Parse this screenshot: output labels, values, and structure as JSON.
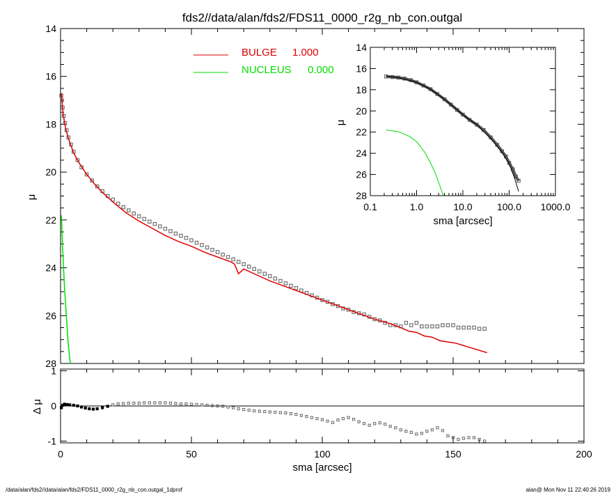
{
  "title": "fds2//data/alan/fds2/FDS11_0000_r2g_nb_con.outgal",
  "footer_left": "/data/alan/fds2//data/alan/fds2/FDS11_0000_r2g_nb_con.outgal_1dprof",
  "footer_right": "alan@  Mon Nov 11 22:40:26 2019",
  "chart_data": [
    {
      "panel": "main",
      "type": "scatter",
      "xlabel": "",
      "ylabel": "μ",
      "xlim": [
        0,
        200
      ],
      "ylim": [
        28,
        14
      ],
      "y_inverted": true,
      "xticks": [
        0,
        50,
        100,
        150,
        200
      ],
      "yticks": [
        14,
        16,
        18,
        20,
        22,
        24,
        26,
        28
      ],
      "legend_position": "top-center",
      "colors": {
        "data": "#666666",
        "bulge": "#dd0000",
        "nucleus": "#00dd00"
      },
      "legend": [
        {
          "name": "BULGE",
          "value": "1.000",
          "color": "#dd0000"
        },
        {
          "name": "NUCLEUS",
          "value": "0.000",
          "color": "#00dd00"
        }
      ],
      "series": [
        {
          "name": "data",
          "kind": "markers",
          "x": [
            0.3,
            0.5,
            0.8,
            1.2,
            1.7,
            2.3,
            3,
            4,
            5,
            6.5,
            8,
            10,
            12,
            14,
            16,
            18,
            20,
            22,
            24,
            26,
            28,
            30,
            32,
            34,
            36,
            38,
            40,
            42,
            44,
            46,
            48,
            50,
            52,
            54,
            56,
            58,
            60,
            62,
            64,
            66,
            68,
            70,
            72,
            74,
            76,
            78,
            80,
            82,
            84,
            86,
            88,
            90,
            92,
            94,
            96,
            98,
            100,
            102,
            104,
            106,
            108,
            110,
            112,
            114,
            116,
            118,
            120,
            122,
            124,
            126,
            128,
            130,
            132,
            134,
            136,
            138,
            140,
            142,
            144,
            146,
            148,
            150,
            152,
            154,
            156,
            158,
            160,
            162
          ],
          "y": [
            16.8,
            17.0,
            17.3,
            17.65,
            17.95,
            18.25,
            18.55,
            18.85,
            19.15,
            19.5,
            19.8,
            20.1,
            20.35,
            20.6,
            20.8,
            21.0,
            21.15,
            21.32,
            21.47,
            21.6,
            21.73,
            21.85,
            21.96,
            22.07,
            22.17,
            22.27,
            22.37,
            22.47,
            22.57,
            22.66,
            22.75,
            22.85,
            22.95,
            23.05,
            23.15,
            23.25,
            23.34,
            23.45,
            23.55,
            23.65,
            23.75,
            23.85,
            23.95,
            24.05,
            24.15,
            24.25,
            24.35,
            24.45,
            24.55,
            24.65,
            24.75,
            24.85,
            24.95,
            25.05,
            25.15,
            25.25,
            25.35,
            25.42,
            25.52,
            25.6,
            25.7,
            25.75,
            25.85,
            25.9,
            25.95,
            26.05,
            26.15,
            26.2,
            26.3,
            26.4,
            26.4,
            26.45,
            26.3,
            26.4,
            26.3,
            26.45,
            26.45,
            26.45,
            26.45,
            26.4,
            26.4,
            26.4,
            26.5,
            26.5,
            26.5,
            26.5,
            26.55,
            26.55
          ]
        },
        {
          "name": "bulge",
          "kind": "line",
          "x": [
            0.3,
            1,
            2,
            3,
            5,
            7,
            10,
            13,
            16,
            20,
            25,
            30,
            35,
            40,
            45,
            50,
            55,
            60,
            65,
            66.5,
            68,
            70,
            75,
            80,
            85,
            90,
            95,
            100,
            105,
            110,
            115,
            120,
            125,
            130,
            133,
            136,
            139,
            142,
            145,
            148,
            151,
            154,
            157,
            160,
            163
          ],
          "y": [
            16.7,
            17.6,
            18.2,
            18.6,
            19.2,
            19.6,
            20.1,
            20.5,
            20.85,
            21.25,
            21.7,
            22.05,
            22.35,
            22.65,
            22.9,
            23.1,
            23.35,
            23.55,
            23.75,
            23.85,
            24.25,
            24.05,
            24.3,
            24.55,
            24.75,
            24.95,
            25.15,
            25.35,
            25.55,
            25.75,
            25.95,
            26.15,
            26.3,
            26.5,
            26.65,
            26.7,
            26.85,
            26.9,
            27.05,
            27.1,
            27.15,
            27.25,
            27.35,
            27.45,
            27.55
          ]
        },
        {
          "name": "nucleus",
          "kind": "line",
          "x": [
            0.3,
            0.8,
            1.5,
            2.2,
            2.8,
            3.4,
            3.8
          ],
          "y": [
            21.8,
            23.2,
            24.8,
            26.0,
            27.0,
            27.7,
            28.0
          ]
        }
      ]
    },
    {
      "panel": "residual",
      "type": "scatter",
      "xlabel": "sma [arcsec]",
      "ylabel": "Δ μ",
      "xlim": [
        0,
        200
      ],
      "ylim": [
        -1.05,
        1.05
      ],
      "xticks": [
        0,
        50,
        100,
        150,
        200
      ],
      "yticks": [
        1,
        0,
        -1
      ],
      "zero_line": true,
      "series": [
        {
          "name": "residual",
          "kind": "markers",
          "x": [
            0.3,
            0.8,
            1.5,
            2.5,
            3.5,
            5,
            6.5,
            8,
            9.5,
            11,
            12.5,
            14,
            16,
            18,
            20,
            22,
            24,
            26,
            28,
            30,
            32,
            34,
            36,
            38,
            40,
            42,
            44,
            46,
            48,
            50,
            52,
            54,
            56,
            58,
            60,
            62,
            64,
            66,
            68,
            70,
            72,
            74,
            76,
            78,
            80,
            82,
            84,
            86,
            88,
            90,
            92,
            94,
            96,
            98,
            100,
            102,
            104,
            106,
            108,
            110,
            112,
            114,
            116,
            118,
            120,
            122,
            124,
            126,
            128,
            130,
            132,
            134,
            136,
            138,
            140,
            142,
            144,
            146,
            148,
            150,
            152,
            154,
            156,
            158,
            160,
            162
          ],
          "y": [
            -0.05,
            0.02,
            0.05,
            0.04,
            0.03,
            0.02,
            0.0,
            -0.03,
            -0.06,
            -0.08,
            -0.09,
            -0.08,
            -0.05,
            -0.01,
            0.03,
            0.06,
            0.07,
            0.08,
            0.08,
            0.08,
            0.09,
            0.09,
            0.09,
            0.09,
            0.09,
            0.08,
            0.07,
            0.06,
            0.06,
            0.05,
            0.04,
            0.03,
            0.02,
            0.01,
            0.0,
            -0.01,
            -0.03,
            -0.05,
            -0.08,
            -0.1,
            -0.12,
            -0.14,
            -0.15,
            -0.16,
            -0.17,
            -0.18,
            -0.19,
            -0.2,
            -0.22,
            -0.24,
            -0.27,
            -0.3,
            -0.33,
            -0.36,
            -0.39,
            -0.43,
            -0.47,
            -0.4,
            -0.36,
            -0.33,
            -0.38,
            -0.45,
            -0.5,
            -0.55,
            -0.5,
            -0.48,
            -0.52,
            -0.58,
            -0.62,
            -0.68,
            -0.72,
            -0.75,
            -0.8,
            -0.78,
            -0.72,
            -0.68,
            -0.62,
            -0.7,
            -0.85,
            -0.9,
            -0.95,
            -0.92,
            -0.9,
            -0.9,
            -0.95,
            -1.0
          ]
        }
      ]
    },
    {
      "panel": "inset",
      "type": "scatter",
      "xlabel": "sma [arcsec]",
      "ylabel": "μ",
      "x_scale": "log",
      "xlim": [
        0.1,
        1000
      ],
      "ylim": [
        28,
        14
      ],
      "y_inverted": true,
      "xticks": [
        0.1,
        1.0,
        10.0,
        100.0,
        1000.0
      ],
      "xtick_labels": [
        "0.1",
        "1.0",
        "10.0",
        "100.0",
        "1000.0"
      ],
      "yticks": [
        14,
        16,
        18,
        20,
        22,
        24,
        26,
        28
      ],
      "series": [
        {
          "name": "data",
          "kind": "markers",
          "x": [
            0.22,
            0.3,
            0.4,
            0.55,
            0.75,
            1.0,
            1.4,
            2.0,
            2.8,
            4.0,
            5.5,
            7.5,
            10,
            14,
            20,
            28,
            40,
            55,
            70,
            85,
            100,
            120,
            140,
            160
          ],
          "y": [
            16.75,
            16.8,
            16.85,
            16.95,
            17.1,
            17.3,
            17.6,
            17.95,
            18.4,
            18.9,
            19.4,
            19.9,
            20.35,
            20.85,
            21.3,
            21.8,
            22.5,
            23.2,
            23.8,
            24.3,
            24.9,
            25.5,
            26.2,
            26.6
          ]
        },
        {
          "name": "bulge",
          "kind": "line",
          "x": [
            0.22,
            0.4,
            1.0,
            2.0,
            4.0,
            10,
            20,
            40,
            70,
            100,
            130,
            160
          ],
          "y": [
            16.7,
            16.85,
            17.3,
            17.95,
            18.9,
            20.35,
            21.3,
            22.6,
            23.9,
            25.0,
            26.3,
            27.6
          ]
        },
        {
          "name": "nucleus",
          "kind": "line",
          "x": [
            0.22,
            0.4,
            0.7,
            1.0,
            1.5,
            2.0,
            2.6,
            3.2,
            3.8
          ],
          "y": [
            21.8,
            21.95,
            22.4,
            22.9,
            23.9,
            24.9,
            26.0,
            27.1,
            28.0
          ]
        }
      ]
    }
  ]
}
